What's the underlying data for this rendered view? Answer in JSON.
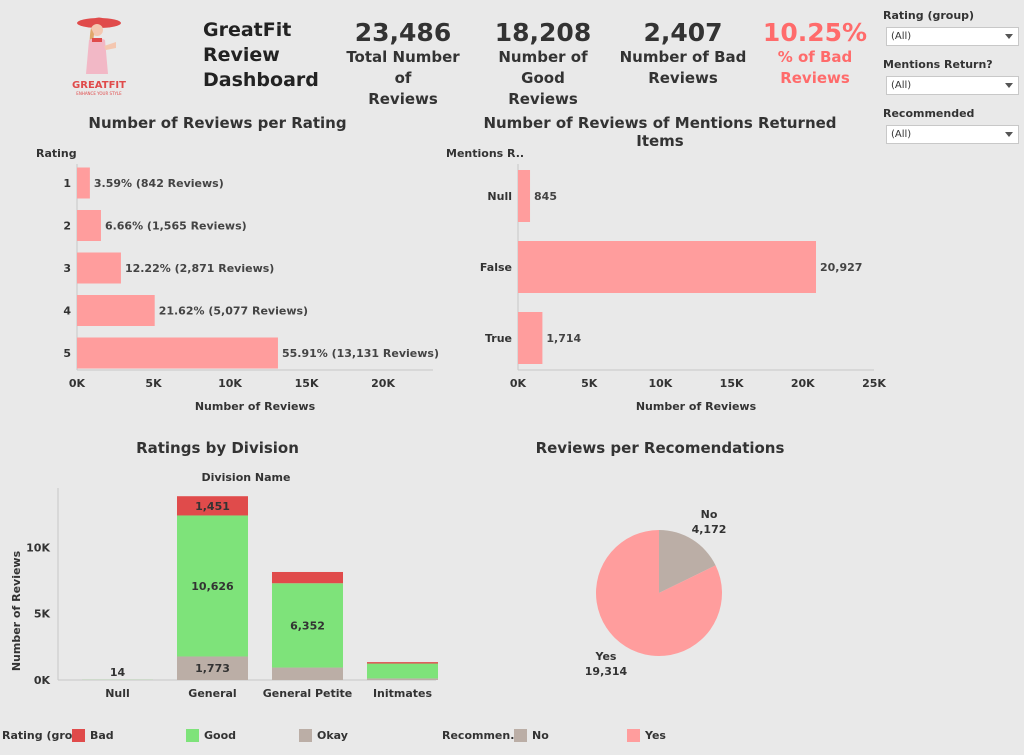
{
  "header": {
    "logo_text": "GREATFIT",
    "logo_tagline": "ENHANCE YOUR STYLE",
    "title_line1": "GreatFit",
    "title_line2": "Review",
    "title_line3": "Dashboard"
  },
  "kpis": [
    {
      "value": "23,486",
      "line1": "Total Number of",
      "line2": "Reviews"
    },
    {
      "value": "18,208",
      "line1": "Number of Good",
      "line2": "Reviews"
    },
    {
      "value": "2,407",
      "line1": "Number of Bad",
      "line2": "Reviews"
    },
    {
      "value": "10.25%",
      "line1": "% of Bad",
      "line2": "Reviews"
    }
  ],
  "filters": [
    {
      "label": "Rating (group)",
      "value": "(All)"
    },
    {
      "label": "Mentions Return?",
      "value": "(All)"
    },
    {
      "label": "Recommended",
      "value": "(All)"
    }
  ],
  "colors": {
    "accent": "#ff6b6b",
    "bar": "#ff9d9d",
    "bad": "#e04b4b",
    "good": "#7ee37a",
    "okay": "#bbaea6",
    "no": "#bbaea6",
    "yes": "#ff9d9d"
  },
  "chart_data": [
    {
      "type": "bar",
      "orientation": "horizontal",
      "title": "Number of Reviews per Rating",
      "ylabel": "Rating",
      "xlabel": "Number of Reviews",
      "categories": [
        "1",
        "2",
        "3",
        "4",
        "5"
      ],
      "values": [
        842,
        1565,
        2871,
        5077,
        13131
      ],
      "data_labels": [
        "3.59% (842 Reviews)",
        "6.66% (1,565 Reviews)",
        "12.22% (2,871 Reviews)",
        "21.62% (5,077 Reviews)",
        "55.91% (13,131 Reviews)"
      ],
      "xticks": [
        "0K",
        "5K",
        "10K",
        "15K",
        "20K"
      ],
      "xlim": [
        0,
        23000
      ]
    },
    {
      "type": "bar",
      "orientation": "horizontal",
      "title": "Number of Reviews of Mentions Returned Items",
      "ylabel": "Mentions R..",
      "xlabel": "Number of Reviews",
      "categories": [
        "Null",
        "False",
        "True"
      ],
      "values": [
        845,
        20927,
        1714
      ],
      "data_labels": [
        "845",
        "20,927",
        "1,714"
      ],
      "xticks": [
        "0K",
        "5K",
        "10K",
        "15K",
        "20K",
        "25K"
      ],
      "xlim": [
        0,
        25000
      ]
    },
    {
      "type": "bar",
      "stacked": true,
      "title": "Ratings by Division",
      "xlabel": "Division Name",
      "ylabel": "Number of Reviews",
      "categories": [
        "Null",
        "General",
        "General Petite",
        "Initmates"
      ],
      "series": [
        {
          "name": "Okay",
          "values": [
            2,
            1773,
            939,
            121
          ]
        },
        {
          "name": "Good",
          "values": [
            11,
            10626,
            6352,
            1119
          ]
        },
        {
          "name": "Bad",
          "values": [
            1,
            1451,
            849,
            107
          ]
        }
      ],
      "data_labels": [
        {
          "category": "Null",
          "text": "14"
        },
        {
          "category": "General",
          "series": "Bad",
          "text": "1,451"
        },
        {
          "category": "General",
          "series": "Good",
          "text": "10,626"
        },
        {
          "category": "General",
          "series": "Okay",
          "text": "1,773"
        },
        {
          "category": "General Petite",
          "series": "Good",
          "text": "6,352"
        }
      ],
      "yticks": [
        "0K",
        "5K",
        "10K"
      ],
      "ylim": [
        0,
        14000
      ]
    },
    {
      "type": "pie",
      "title": "Reviews per Recomendations",
      "slices": [
        {
          "name": "No",
          "value": 4172,
          "label": "4,172"
        },
        {
          "name": "Yes",
          "value": 19314,
          "label": "19,314"
        }
      ]
    }
  ],
  "legend": {
    "rating_title": "Rating (gro..",
    "rating_items": [
      "Bad",
      "Good",
      "Okay"
    ],
    "recommend_title": "Recommen..",
    "recommend_items": [
      "No",
      "Yes"
    ]
  }
}
